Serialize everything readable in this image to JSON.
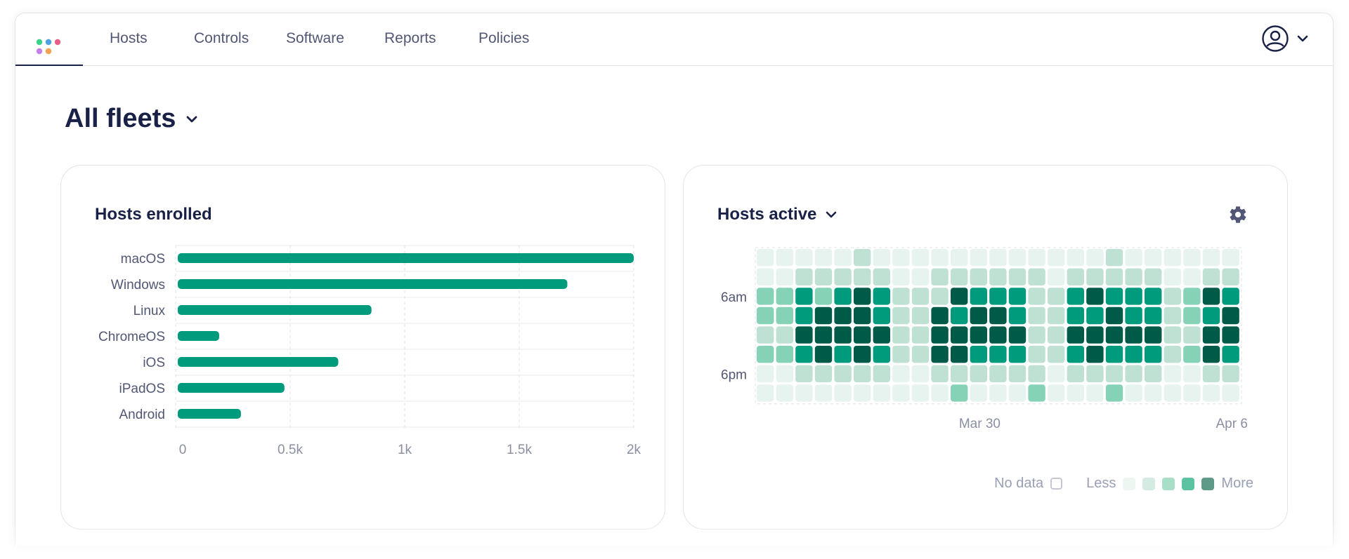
{
  "nav": {
    "items": [
      {
        "label": "Hosts",
        "key": "hosts"
      },
      {
        "label": "Controls",
        "key": "controls"
      },
      {
        "label": "Software",
        "key": "software"
      },
      {
        "label": "Reports",
        "key": "reports"
      },
      {
        "label": "Policies",
        "key": "policies"
      }
    ],
    "user_icon": "user-circle-icon",
    "user_chevron": "chevron-down-icon"
  },
  "page": {
    "title": "All fleets"
  },
  "cards": {
    "enrolled": {
      "title": "Hosts enrolled"
    },
    "active": {
      "title": "Hosts active",
      "settings_icon": "gear-icon",
      "legend": {
        "no_data": "No data",
        "less": "Less",
        "more": "More"
      }
    }
  },
  "colors": {
    "accent": "#009a7d",
    "heat_levels": [
      "#e6f3ee",
      "#bfe1d3",
      "#86d2b7",
      "#009a7d",
      "#005a48"
    ]
  },
  "chart_data": [
    {
      "type": "bar",
      "title": "Hosts enrolled",
      "orientation": "horizontal",
      "categories": [
        "macOS",
        "Windows",
        "Linux",
        "ChromeOS",
        "iOS",
        "iPadOS",
        "Android"
      ],
      "values": [
        2000,
        1710,
        855,
        190,
        710,
        475,
        285
      ],
      "xticks": [
        "0",
        "0.5k",
        "1k",
        "1.5k",
        "2k"
      ],
      "xlim": [
        0,
        2000
      ],
      "grid": true
    },
    {
      "type": "heatmap",
      "title": "Hosts active",
      "rows": 8,
      "y_tick_labels": [
        {
          "label": "6am",
          "row": 2
        },
        {
          "label": "6pm",
          "row": 6
        }
      ],
      "x_tick_labels": [
        {
          "label": "Mar 30",
          "col": 11
        },
        {
          "label": "Apr 6",
          "col": 24
        }
      ],
      "levels": [
        [
          0,
          0,
          0,
          0,
          0,
          1,
          0,
          0,
          0,
          0,
          0,
          0,
          0,
          0,
          0,
          0,
          0,
          0,
          1,
          0,
          0,
          0,
          0,
          0,
          0
        ],
        [
          0,
          0,
          1,
          1,
          1,
          1,
          1,
          0,
          0,
          1,
          1,
          1,
          1,
          1,
          1,
          0,
          1,
          1,
          1,
          1,
          1,
          0,
          0,
          1,
          1
        ],
        [
          2,
          2,
          3,
          2,
          3,
          4,
          3,
          1,
          1,
          1,
          4,
          3,
          3,
          3,
          1,
          1,
          3,
          4,
          3,
          3,
          3,
          1,
          2,
          4,
          3
        ],
        [
          2,
          2,
          3,
          4,
          4,
          4,
          3,
          1,
          1,
          4,
          3,
          4,
          4,
          3,
          1,
          1,
          3,
          3,
          4,
          3,
          3,
          1,
          2,
          3,
          4
        ],
        [
          1,
          1,
          4,
          4,
          4,
          4,
          4,
          1,
          1,
          4,
          4,
          4,
          4,
          4,
          1,
          1,
          4,
          4,
          4,
          4,
          4,
          1,
          1,
          4,
          4
        ],
        [
          2,
          2,
          3,
          4,
          3,
          4,
          3,
          1,
          1,
          4,
          4,
          3,
          3,
          3,
          1,
          1,
          3,
          4,
          3,
          3,
          3,
          1,
          2,
          4,
          3
        ],
        [
          0,
          0,
          1,
          1,
          1,
          1,
          1,
          0,
          0,
          1,
          1,
          1,
          1,
          1,
          1,
          0,
          1,
          1,
          1,
          1,
          1,
          0,
          0,
          1,
          1
        ],
        [
          0,
          0,
          0,
          0,
          0,
          0,
          0,
          0,
          0,
          0,
          2,
          0,
          0,
          0,
          2,
          0,
          0,
          0,
          2,
          0,
          0,
          0,
          0,
          0,
          0
        ]
      ]
    }
  ]
}
